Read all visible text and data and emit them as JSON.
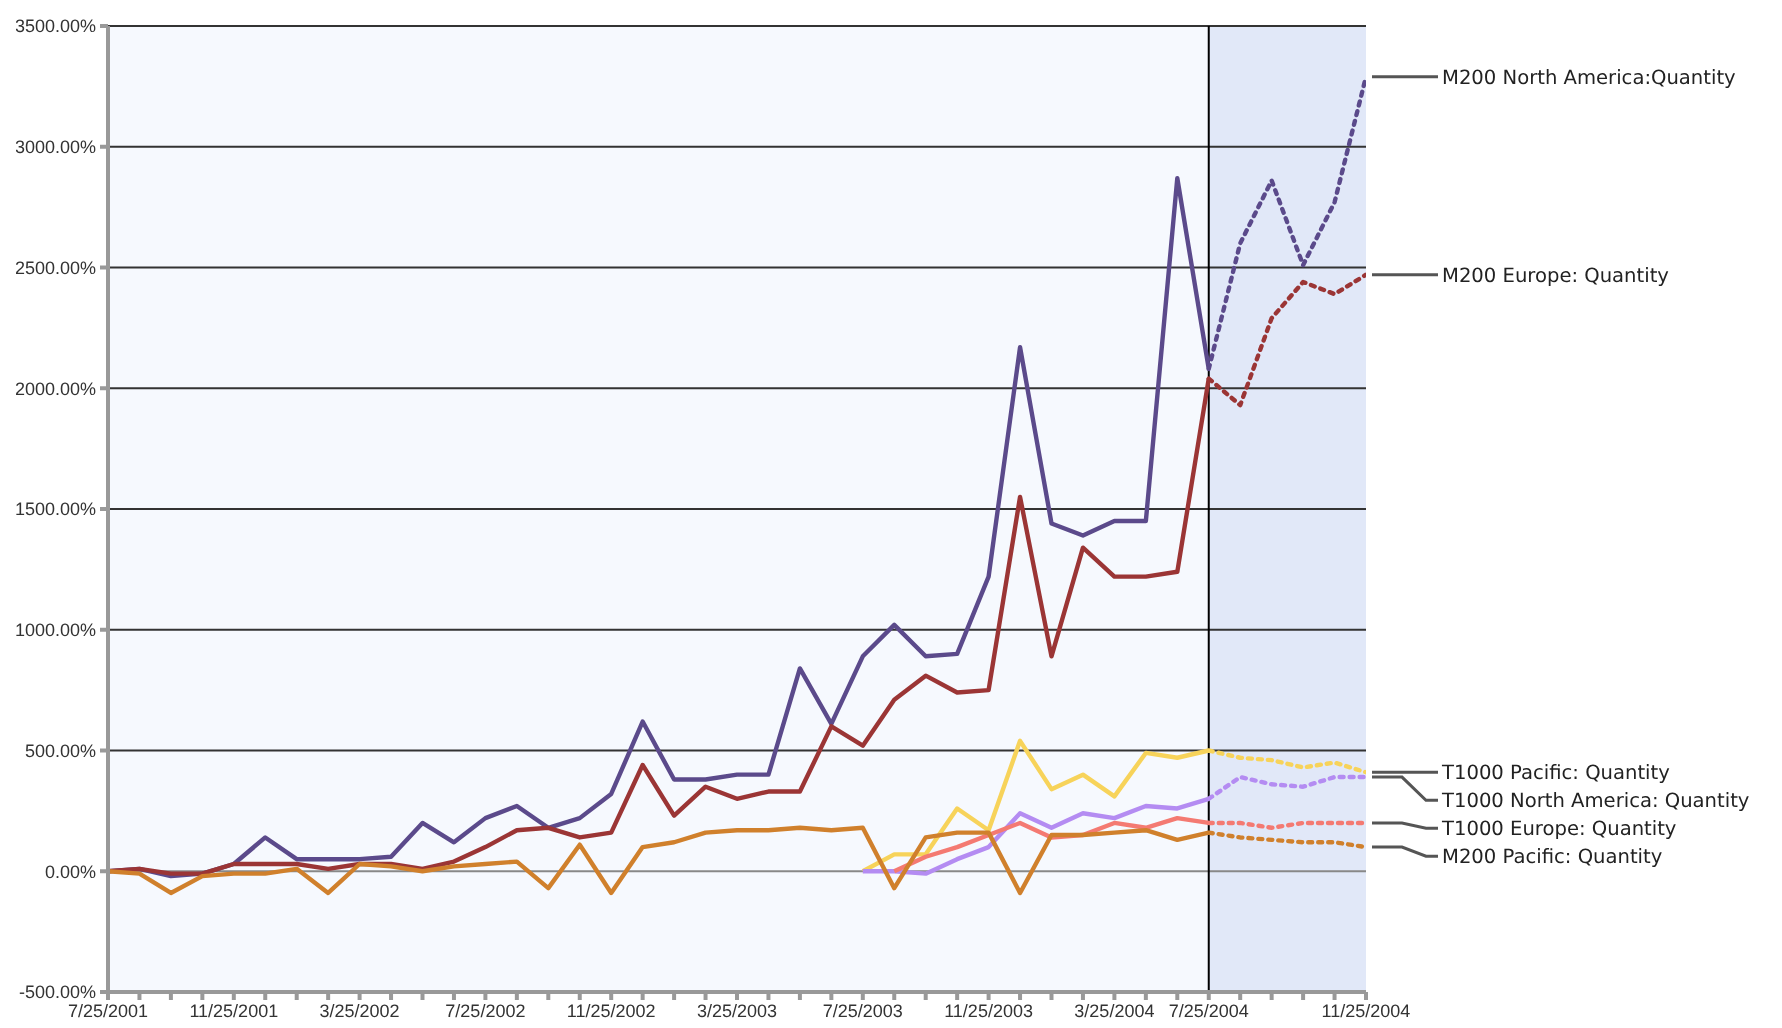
{
  "chart_data": {
    "type": "line",
    "categories": [
      "7/25/2001",
      null,
      null,
      null,
      "11/25/2001",
      null,
      null,
      null,
      "3/25/2002",
      null,
      null,
      null,
      "7/25/2002",
      null,
      null,
      null,
      "11/25/2002",
      null,
      null,
      null,
      "3/25/2003",
      null,
      null,
      null,
      "7/25/2003",
      null,
      null,
      null,
      "11/25/2003",
      null,
      null,
      null,
      "3/25/2004",
      null,
      null,
      "7/25/2004",
      null,
      null,
      null,
      null,
      "11/25/2004"
    ],
    "ylim": [
      -500,
      3500
    ],
    "yticks": [
      {
        "value": -500,
        "label": "-500.00%"
      },
      {
        "value": 0,
        "label": "0.00%"
      },
      {
        "value": 500,
        "label": "500.00%"
      },
      {
        "value": 1000,
        "label": "1000.00%"
      },
      {
        "value": 1500,
        "label": "1500.00%"
      },
      {
        "value": 2000,
        "label": "2000.00%"
      },
      {
        "value": 2500,
        "label": "2500.00%"
      },
      {
        "value": 3000,
        "label": "3000.00%"
      },
      {
        "value": 3500,
        "label": "3500.00%"
      }
    ],
    "grid": "y",
    "marker": "none",
    "bands": [
      {
        "axis": "x",
        "from": "7/25/2004",
        "to": "11/25/2004",
        "color": "#e1e8f8"
      }
    ],
    "ref_lines": [
      {
        "axis": "x",
        "value": "7/25/2004",
        "color": "#000000"
      }
    ],
    "series": [
      {
        "name": "M200 North America:Quantity",
        "color": "#5b4a8b",
        "line_style": "solid",
        "values": [
          0,
          10,
          -20,
          -10,
          30,
          140,
          50,
          50,
          50,
          60,
          200,
          120,
          220,
          270,
          180,
          220,
          320,
          620,
          380,
          380,
          400,
          400,
          840,
          610,
          890,
          1020,
          890,
          900,
          1220,
          2170,
          1440,
          1390,
          1450,
          1450,
          2870,
          2080,
          null,
          null,
          null,
          null,
          null
        ]
      },
      {
        "color": "#5b4a8b",
        "line_style": "dotted",
        "values": [
          null,
          null,
          null,
          null,
          null,
          null,
          null,
          null,
          null,
          null,
          null,
          null,
          null,
          null,
          null,
          null,
          null,
          null,
          null,
          null,
          null,
          null,
          null,
          null,
          null,
          null,
          null,
          null,
          null,
          null,
          null,
          null,
          null,
          null,
          null,
          2080,
          2600,
          2860,
          2510,
          2770,
          3290
        ]
      },
      {
        "name": "M200 Europe: Quantity",
        "color": "#9b3535",
        "line_style": "solid",
        "values": [
          0,
          10,
          -10,
          -10,
          30,
          30,
          30,
          10,
          30,
          30,
          10,
          40,
          100,
          170,
          180,
          140,
          160,
          440,
          230,
          350,
          300,
          330,
          330,
          600,
          520,
          710,
          810,
          740,
          750,
          1550,
          890,
          1340,
          1220,
          1220,
          1240,
          2040,
          null,
          null,
          null,
          null,
          null
        ]
      },
      {
        "color": "#9b3535",
        "line_style": "dotted",
        "values": [
          null,
          null,
          null,
          null,
          null,
          null,
          null,
          null,
          null,
          null,
          null,
          null,
          null,
          null,
          null,
          null,
          null,
          null,
          null,
          null,
          null,
          null,
          null,
          null,
          null,
          null,
          null,
          null,
          null,
          null,
          null,
          null,
          null,
          null,
          null,
          2040,
          1930,
          2290,
          2440,
          2390,
          2470
        ]
      },
      {
        "name": "T1000 Pacific: Quantity",
        "color": "#f7d35a",
        "line_style": "solid",
        "values": [
          null,
          null,
          null,
          null,
          null,
          null,
          null,
          null,
          null,
          null,
          null,
          null,
          null,
          null,
          null,
          null,
          null,
          null,
          null,
          null,
          null,
          null,
          null,
          null,
          0,
          70,
          70,
          260,
          170,
          540,
          340,
          400,
          310,
          490,
          470,
          500,
          null,
          null,
          null,
          null,
          null
        ]
      },
      {
        "color": "#f7d35a",
        "line_style": "dotted",
        "values": [
          null,
          null,
          null,
          null,
          null,
          null,
          null,
          null,
          null,
          null,
          null,
          null,
          null,
          null,
          null,
          null,
          null,
          null,
          null,
          null,
          null,
          null,
          null,
          null,
          null,
          null,
          null,
          null,
          null,
          null,
          null,
          null,
          null,
          null,
          null,
          500,
          470,
          460,
          430,
          450,
          410
        ]
      },
      {
        "name": "T1000 North America: Quantity",
        "color": "#b48cf2",
        "line_style": "solid",
        "values": [
          null,
          null,
          null,
          null,
          null,
          null,
          null,
          null,
          null,
          null,
          null,
          null,
          null,
          null,
          null,
          null,
          null,
          null,
          null,
          null,
          null,
          null,
          null,
          null,
          0,
          0,
          -10,
          50,
          100,
          240,
          180,
          240,
          220,
          270,
          260,
          300,
          null,
          null,
          null,
          null,
          null
        ]
      },
      {
        "color": "#b48cf2",
        "line_style": "dotted",
        "values": [
          null,
          null,
          null,
          null,
          null,
          null,
          null,
          null,
          null,
          null,
          null,
          null,
          null,
          null,
          null,
          null,
          null,
          null,
          null,
          null,
          null,
          null,
          null,
          null,
          null,
          null,
          null,
          null,
          null,
          null,
          null,
          null,
          null,
          null,
          null,
          300,
          390,
          360,
          350,
          390,
          390
        ]
      },
      {
        "name": "T1000 Europe: Quantity",
        "color": "#f47a72",
        "line_style": "solid",
        "values": [
          null,
          null,
          null,
          null,
          null,
          null,
          null,
          null,
          null,
          null,
          null,
          null,
          null,
          null,
          null,
          null,
          null,
          null,
          null,
          null,
          null,
          null,
          null,
          null,
          null,
          0,
          60,
          100,
          150,
          200,
          140,
          150,
          200,
          180,
          220,
          200,
          null,
          null,
          null,
          null,
          null
        ]
      },
      {
        "color": "#f47a72",
        "line_style": "dotted",
        "values": [
          null,
          null,
          null,
          null,
          null,
          null,
          null,
          null,
          null,
          null,
          null,
          null,
          null,
          null,
          null,
          null,
          null,
          null,
          null,
          null,
          null,
          null,
          null,
          null,
          null,
          null,
          null,
          null,
          null,
          null,
          null,
          null,
          null,
          null,
          null,
          200,
          200,
          180,
          200,
          200,
          200
        ]
      },
      {
        "name": "M200 Pacific: Quantity",
        "color": "#d0802c",
        "line_style": "solid",
        "values": [
          0,
          -10,
          -90,
          -20,
          -10,
          -10,
          10,
          -90,
          30,
          20,
          0,
          20,
          30,
          40,
          -70,
          110,
          -90,
          100,
          120,
          160,
          170,
          170,
          180,
          170,
          180,
          -70,
          140,
          160,
          160,
          -90,
          150,
          150,
          160,
          170,
          130,
          160,
          null,
          null,
          null,
          null,
          null
        ]
      },
      {
        "color": "#d0802c",
        "line_style": "dotted",
        "values": [
          null,
          null,
          null,
          null,
          null,
          null,
          null,
          null,
          null,
          null,
          null,
          null,
          null,
          null,
          null,
          null,
          null,
          null,
          null,
          null,
          null,
          null,
          null,
          null,
          null,
          null,
          null,
          null,
          null,
          null,
          null,
          null,
          null,
          null,
          null,
          160,
          140,
          130,
          120,
          120,
          100
        ]
      }
    ]
  }
}
